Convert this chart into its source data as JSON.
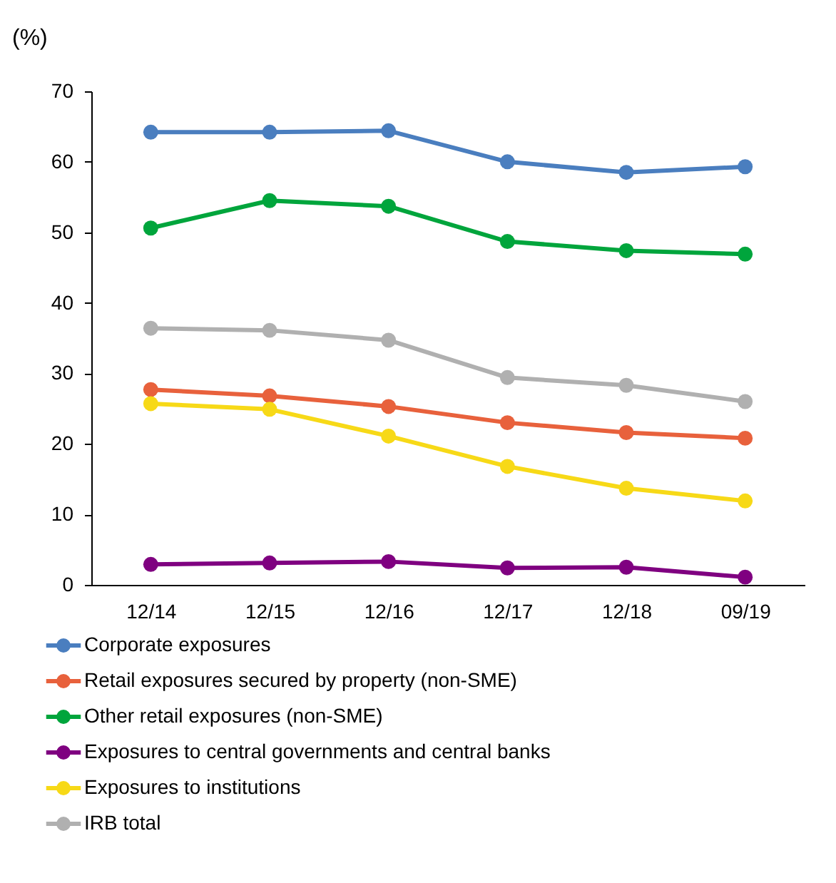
{
  "chart_data": {
    "type": "line",
    "ylabel": "(%)",
    "categories": [
      "12/14",
      "12/15",
      "12/16",
      "12/17",
      "12/18",
      "09/19"
    ],
    "ylim": [
      0,
      70
    ],
    "yticks": [
      0,
      10,
      20,
      30,
      40,
      50,
      60,
      70
    ],
    "grid": false,
    "legend": "bottom",
    "marker": "circle",
    "line_style": "solid",
    "series": [
      {
        "name": "Corporate exposures",
        "color": "#4a7ebf",
        "values": [
          64.2,
          64.2,
          64.4,
          60.0,
          58.5,
          59.3
        ]
      },
      {
        "name": "Retail exposures secured by property (non-SME)",
        "color": "#e8613c",
        "values": [
          27.7,
          26.8,
          25.3,
          23.0,
          21.6,
          20.8
        ]
      },
      {
        "name": "Other retail exposures (non-SME)",
        "color": "#00a53c",
        "values": [
          50.6,
          54.5,
          53.7,
          48.7,
          47.4,
          46.9
        ]
      },
      {
        "name": "Exposures to central governments and central banks",
        "color": "#7f0080",
        "values": [
          2.9,
          3.1,
          3.3,
          2.4,
          2.5,
          1.1
        ]
      },
      {
        "name": "Exposures to institutions",
        "color": "#f7d917",
        "values": [
          25.7,
          24.9,
          21.1,
          16.8,
          13.7,
          11.9
        ]
      },
      {
        "name": "IRB total",
        "color": "#b0b0b0",
        "values": [
          36.4,
          36.1,
          34.7,
          29.4,
          28.3,
          26.0
        ]
      }
    ]
  }
}
